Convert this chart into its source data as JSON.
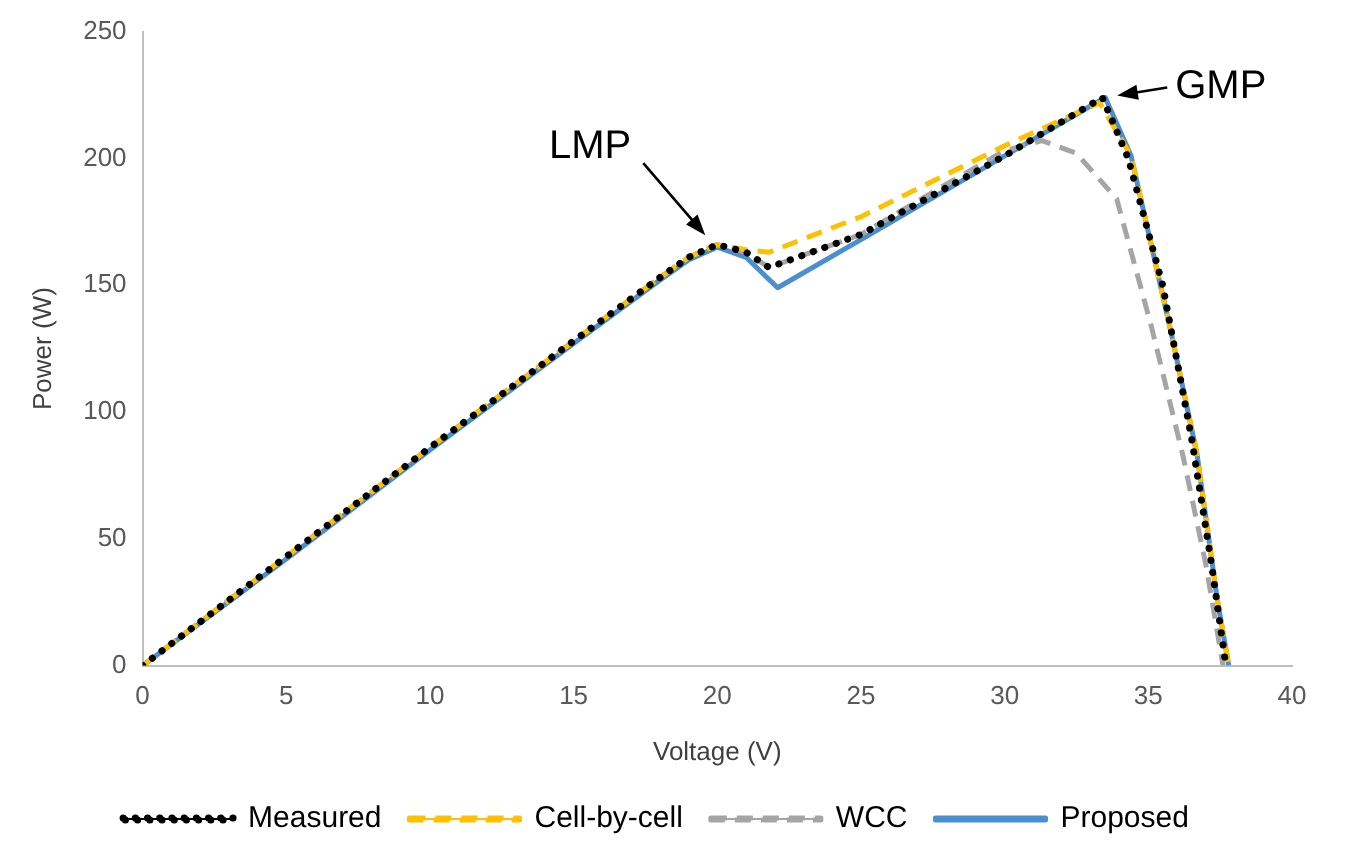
{
  "chart_data": {
    "type": "line",
    "xlabel": "Voltage (V)",
    "ylabel": "Power (W)",
    "xlim": [
      0,
      40
    ],
    "xticks": [
      0,
      5,
      10,
      15,
      20,
      25,
      30,
      35,
      40
    ],
    "ylim": [
      0,
      250
    ],
    "yticks": [
      0,
      50,
      100,
      150,
      200,
      250
    ],
    "grid": false,
    "legend": "bottom",
    "marker": "none",
    "annotations": [
      {
        "text": "LMP",
        "x": 20,
        "y": 165
      },
      {
        "text": "GMP",
        "x": 33.5,
        "y": 224
      }
    ],
    "series": [
      {
        "name": "Measured",
        "color": "#000000",
        "line_style": "dotted",
        "x": [
          0,
          5,
          10,
          15,
          18,
          19,
          20,
          21,
          21.8,
          25,
          30,
          33.4,
          34.3,
          35.5,
          36.5,
          37.2,
          37.7
        ],
        "values": [
          0,
          43,
          86,
          128,
          153,
          161,
          166,
          163,
          157,
          170,
          201,
          224,
          200,
          150,
          90,
          40,
          0
        ]
      },
      {
        "name": "Cell-by-cell",
        "color": "#ffc000",
        "line_style": "dashed",
        "x": [
          0,
          5,
          10,
          15,
          18,
          19,
          20,
          21,
          21.8,
          25,
          30,
          33.3,
          34.4,
          35.8,
          36.7,
          37.4,
          37.8
        ],
        "values": [
          0,
          43,
          86,
          128,
          153,
          161,
          166,
          164,
          163,
          177,
          205,
          222,
          201,
          131,
          83,
          26,
          0
        ]
      },
      {
        "name": "WCC",
        "color": "#a5a5a5",
        "line_style": "dashed",
        "x": [
          0,
          5,
          10,
          15,
          18,
          19,
          20,
          21,
          21.8,
          25,
          28,
          30,
          31.3,
          32.5,
          33.9,
          35.1,
          36.2,
          37,
          37.6
        ],
        "values": [
          0,
          43,
          86,
          128,
          153,
          161,
          166,
          163,
          157,
          170,
          190,
          203,
          207,
          202,
          184,
          134,
          83,
          40,
          0
        ]
      },
      {
        "name": "Proposed",
        "color": "#4a8fcf",
        "line_style": "solid",
        "x": [
          0,
          5,
          10,
          15,
          18,
          19,
          20,
          21,
          22.1,
          25,
          30,
          33.5,
          34.4,
          35.8,
          36.7,
          37.4,
          37.8
        ],
        "values": [
          0,
          42,
          85,
          127,
          152,
          160,
          165,
          161,
          149,
          168,
          201,
          224,
          201,
          131,
          83,
          26,
          0
        ]
      }
    ]
  }
}
